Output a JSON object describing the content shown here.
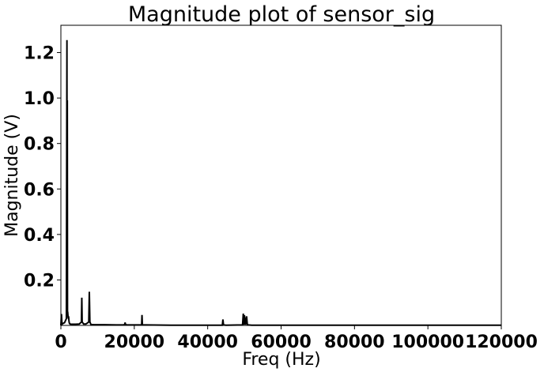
{
  "chart_data": {
    "type": "line",
    "title": "Magnitude plot of sensor_sig",
    "xlabel": "Freq (Hz)",
    "ylabel": "Magnitude (V)",
    "xlim": [
      0,
      120000
    ],
    "ylim": [
      0,
      1.32
    ],
    "grid": false,
    "legend": "none",
    "line_color": "#000000",
    "x_ticks": [
      0,
      20000,
      40000,
      60000,
      80000,
      100000,
      120000
    ],
    "x_tick_labels": [
      "0",
      "20000",
      "40000",
      "60000",
      "80000",
      "100000",
      "120000"
    ],
    "y_ticks": [
      0.2,
      0.4,
      0.6,
      0.8,
      1.0,
      1.2
    ],
    "y_tick_labels": [
      "0.2",
      "0.4",
      "0.6",
      "0.8",
      "1.0",
      "1.2"
    ],
    "series": [
      {
        "x": [
          0,
          150,
          300,
          500,
          1000,
          1500,
          1650,
          1700,
          1750,
          1800,
          1850,
          1900,
          2000,
          2100,
          2200,
          2300,
          2500,
          3000,
          3500,
          4000,
          5000,
          5600,
          5700,
          5800,
          6200,
          6800,
          7000,
          7600,
          7750,
          7900,
          8200,
          9000,
          12000,
          15000,
          17000,
          17400,
          17500,
          17600,
          18000,
          19000,
          20000,
          22000,
          22100,
          22200,
          22400,
          23000,
          30000,
          40000,
          44000,
          44150,
          44300,
          45000,
          49500,
          49700,
          49850,
          50000,
          50300,
          50600,
          50800,
          51000,
          52000,
          60000,
          80000,
          100000,
          120000
        ],
        "y": [
          0,
          0.05,
          0.005,
          0.008,
          0.012,
          0.03,
          1.255,
          0.06,
          0.99,
          0.04,
          0.06,
          0.05,
          0.03,
          0.04,
          0.02,
          0.01,
          0.006,
          0.005,
          0.005,
          0.005,
          0.006,
          0.015,
          0.122,
          0.015,
          0.006,
          0.006,
          0.008,
          0.015,
          0.148,
          0.015,
          0.004,
          0.003,
          0.003,
          0.002,
          0.002,
          0.004,
          0.013,
          0.004,
          0.002,
          0.002,
          0.002,
          0.002,
          0.046,
          0.003,
          0.002,
          0.002,
          0.001,
          0.001,
          0.001,
          0.026,
          0.002,
          0.001,
          0.002,
          0.052,
          0.003,
          0.045,
          0.003,
          0.04,
          0.003,
          0.002,
          0.001,
          0.001,
          0.001,
          0.001,
          0.001
        ]
      }
    ]
  }
}
